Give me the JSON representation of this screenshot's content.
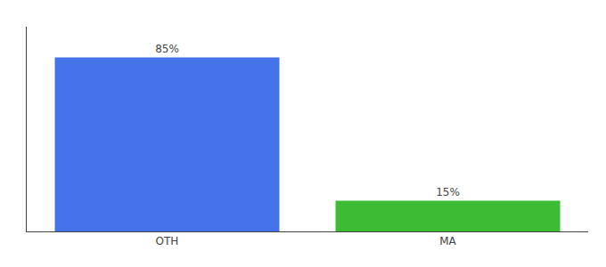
{
  "chart_data": {
    "type": "bar",
    "categories": [
      "OTH",
      "MA"
    ],
    "values": [
      85,
      15
    ],
    "value_labels": [
      "85%",
      "15%"
    ],
    "colors": [
      "#4472e8",
      "#3dbb35"
    ],
    "ylim": [
      0,
      100
    ],
    "data_labels": true,
    "tick_labels": "x",
    "grid": false
  }
}
